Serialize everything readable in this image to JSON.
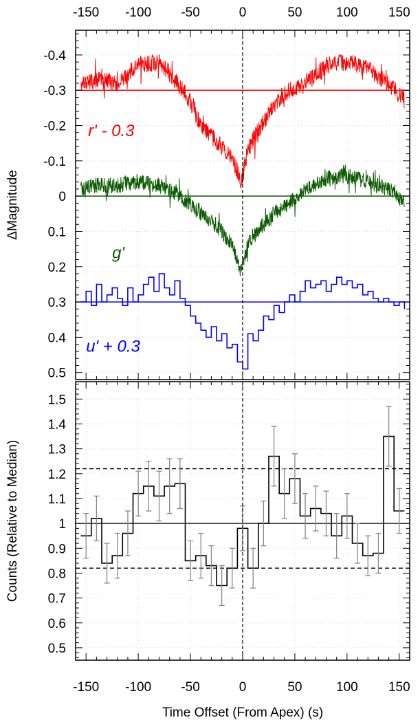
{
  "chart_data": [
    {
      "type": "line",
      "panel": "top",
      "ylabel": "ΔMagnitude",
      "y_axis_inverted": true,
      "xlim": [
        -160,
        160
      ],
      "ylim": [
        -0.47,
        0.52
      ],
      "x_ticks": [
        -150,
        -100,
        -50,
        0,
        50,
        100,
        150
      ],
      "y_ticks": [
        -0.4,
        -0.3,
        -0.2,
        -0.1,
        0,
        0.1,
        0.2,
        0.3,
        0.4,
        0.5
      ],
      "y_tick_labels": [
        "-0.4",
        "-0.3",
        "-0.2",
        "-0.1",
        "0",
        "0.1",
        "0.2",
        "0.3",
        "0.4",
        "0.5"
      ],
      "x_tick_labels_top": [
        "-150",
        "-100",
        "-50",
        "0",
        "50",
        "100",
        "150"
      ],
      "grid": true,
      "vertical_marker_x": 0,
      "series": [
        {
          "name": "r' - 0.3",
          "color": "#ff0000",
          "baseline": -0.3,
          "x": [
            -155,
            -140,
            -120,
            -100,
            -80,
            -65,
            -50,
            -40,
            -30,
            -20,
            -10,
            -5,
            -2,
            0,
            2,
            5,
            10,
            20,
            30,
            40,
            50,
            65,
            80,
            100,
            120,
            135,
            150,
            155
          ],
          "y": [
            -0.31,
            -0.33,
            -0.32,
            -0.37,
            -0.38,
            -0.33,
            -0.27,
            -0.2,
            -0.17,
            -0.14,
            -0.11,
            -0.07,
            -0.03,
            -0.05,
            -0.09,
            -0.13,
            -0.16,
            -0.21,
            -0.26,
            -0.29,
            -0.31,
            -0.33,
            -0.37,
            -0.38,
            -0.36,
            -0.33,
            -0.29,
            -0.27
          ],
          "noise": 0.025
        },
        {
          "name": "g'",
          "color": "#0a5a00",
          "baseline": 0,
          "x": [
            -155,
            -140,
            -120,
            -100,
            -80,
            -60,
            -45,
            -30,
            -20,
            -10,
            -5,
            -2,
            0,
            2,
            5,
            10,
            20,
            30,
            45,
            60,
            80,
            100,
            120,
            140,
            155
          ],
          "y": [
            -0.02,
            -0.03,
            -0.03,
            -0.04,
            -0.03,
            0,
            0.04,
            0.07,
            0.1,
            0.14,
            0.18,
            0.21,
            0.19,
            0.17,
            0.14,
            0.11,
            0.08,
            0.05,
            0.02,
            -0.02,
            -0.05,
            -0.06,
            -0.04,
            -0.02,
            0.02
          ],
          "noise": 0.022
        },
        {
          "name": "u' + 0.3",
          "color": "#0000ff",
          "baseline": 0.3,
          "step": true,
          "x": [
            -155,
            -150,
            -145,
            -140,
            -135,
            -130,
            -125,
            -120,
            -115,
            -110,
            -105,
            -100,
            -95,
            -90,
            -85,
            -80,
            -75,
            -70,
            -65,
            -60,
            -55,
            -50,
            -45,
            -40,
            -35,
            -30,
            -25,
            -20,
            -15,
            -10,
            -5,
            0,
            5,
            10,
            15,
            20,
            25,
            30,
            35,
            40,
            45,
            50,
            55,
            60,
            65,
            70,
            75,
            80,
            85,
            90,
            95,
            100,
            105,
            110,
            115,
            120,
            125,
            130,
            135,
            140,
            145,
            150,
            155
          ],
          "y": [
            0.3,
            0.27,
            0.31,
            0.25,
            0.3,
            0.28,
            0.26,
            0.29,
            0.31,
            0.26,
            0.3,
            0.28,
            0.25,
            0.23,
            0.27,
            0.22,
            0.26,
            0.28,
            0.24,
            0.29,
            0.31,
            0.34,
            0.36,
            0.38,
            0.4,
            0.37,
            0.41,
            0.39,
            0.43,
            0.42,
            0.47,
            0.49,
            0.39,
            0.41,
            0.38,
            0.34,
            0.35,
            0.31,
            0.33,
            0.3,
            0.28,
            0.3,
            0.27,
            0.24,
            0.26,
            0.25,
            0.24,
            0.27,
            0.25,
            0.23,
            0.25,
            0.24,
            0.26,
            0.25,
            0.28,
            0.27,
            0.29,
            0.3,
            0.29,
            0.3,
            0.31,
            0.3,
            0.32
          ],
          "noise": 0
        }
      ],
      "annotations": [
        {
          "text": "r' - 0.3",
          "color": "#ff0000",
          "x": -148,
          "y": -0.185
        },
        {
          "text": "g'",
          "color": "#0a5a00",
          "x": -125,
          "y": 0.16
        },
        {
          "text": "u' + 0.3",
          "color": "#0000ff",
          "x": -150,
          "y": 0.425
        }
      ]
    },
    {
      "type": "line",
      "panel": "bottom",
      "xlabel": "Time Offset (From Apex) (s)",
      "ylabel": "Counts (Relative to Median)",
      "xlim": [
        -160,
        160
      ],
      "ylim": [
        0.45,
        1.57
      ],
      "x_ticks": [
        -150,
        -100,
        -50,
        0,
        50,
        100,
        150
      ],
      "x_tick_labels": [
        "-150",
        "-100",
        "-50",
        "0",
        "50",
        "100",
        "150"
      ],
      "y_ticks": [
        0.5,
        0.6,
        0.7,
        0.8,
        0.9,
        1,
        1.1,
        1.2,
        1.3,
        1.4,
        1.5
      ],
      "y_tick_labels": [
        "0.5",
        "0.6",
        "0.7",
        "0.8",
        "0.9",
        "1",
        "1.1",
        "1.2",
        "1.3",
        "1.4",
        "1.5"
      ],
      "grid": true,
      "vertical_marker_x": 0,
      "reference_lines": [
        {
          "y": 1.0,
          "style": "solid"
        },
        {
          "y": 1.22,
          "style": "dashed"
        },
        {
          "y": 0.82,
          "style": "dashed"
        }
      ],
      "series": [
        {
          "name": "",
          "color": "#000000",
          "step": true,
          "bin_width": 10,
          "x": [
            -150,
            -140,
            -130,
            -120,
            -110,
            -100,
            -90,
            -80,
            -70,
            -60,
            -50,
            -40,
            -30,
            -20,
            -10,
            0,
            10,
            20,
            30,
            40,
            50,
            60,
            70,
            80,
            90,
            100,
            110,
            120,
            130,
            140,
            150
          ],
          "y": [
            0.95,
            1.02,
            0.84,
            0.87,
            0.96,
            1.12,
            1.15,
            1.11,
            1.15,
            1.16,
            0.85,
            0.87,
            0.83,
            0.75,
            0.82,
            0.98,
            0.82,
            1.0,
            1.27,
            1.12,
            1.18,
            1.03,
            1.06,
            1.04,
            0.95,
            1.03,
            0.92,
            0.87,
            0.88,
            1.35,
            1.05
          ],
          "err": [
            0.09,
            0.09,
            0.08,
            0.09,
            0.09,
            0.09,
            0.1,
            0.1,
            0.11,
            0.1,
            0.08,
            0.09,
            0.08,
            0.08,
            0.08,
            0.09,
            0.08,
            0.09,
            0.12,
            0.1,
            0.1,
            0.09,
            0.09,
            0.09,
            0.09,
            0.09,
            0.08,
            0.08,
            0.08,
            0.12,
            0.09
          ]
        }
      ]
    }
  ]
}
